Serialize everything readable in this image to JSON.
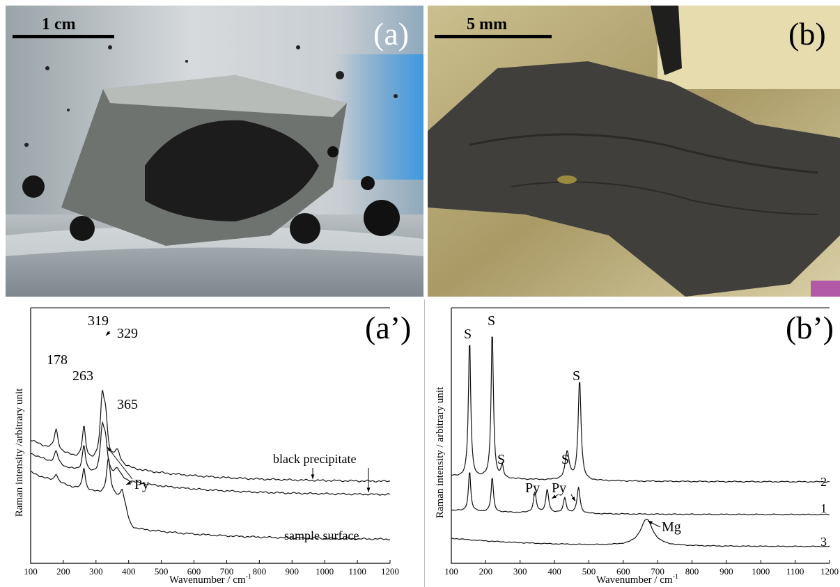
{
  "panels": {
    "a": {
      "letter": "(a)",
      "scale": "1 cm"
    },
    "b": {
      "letter": "(b)",
      "scale": "5 mm"
    }
  },
  "chart_data": [
    {
      "panel": "(a’)",
      "type": "line",
      "ylabel": "Raman intensity /arbitrary unit",
      "xlabel": "Wavenumber / cm",
      "xlabel_sup": "-1",
      "xlim": [
        100,
        1200
      ],
      "xticks": [
        100,
        200,
        300,
        400,
        500,
        600,
        700,
        800,
        900,
        1000,
        1100,
        1200
      ],
      "peak_labels": [
        "319",
        "329",
        "178",
        "263",
        "365",
        "Py"
      ],
      "series": [
        {
          "name": "black precipitate",
          "peaks": [
            178,
            263,
            319,
            329,
            365
          ]
        },
        {
          "name": "black precipitate",
          "peaks": [
            178,
            263,
            319,
            329,
            365
          ]
        },
        {
          "name": "sample surface",
          "peaks": [
            178,
            263,
            338,
            380
          ]
        }
      ]
    },
    {
      "panel": "(b’)",
      "type": "line",
      "ylabel": "Raman intensity / arbitrary unit",
      "xlabel": "Wavenumber / cm",
      "xlabel_sup": "-1",
      "xlim": [
        100,
        1200
      ],
      "xticks": [
        100,
        200,
        300,
        400,
        500,
        600,
        700,
        800,
        900,
        1000,
        1100,
        1200
      ],
      "peak_labels": [
        "S",
        "S",
        "S",
        "S",
        "S",
        "Py",
        "Py",
        "Mg"
      ],
      "series": [
        {
          "name": "2",
          "peaks": [
            153,
            219,
            248,
            437,
            473
          ]
        },
        {
          "name": "1",
          "peaks": [
            153,
            219,
            343,
            379,
            430,
            470
          ]
        },
        {
          "name": "3",
          "peaks": [
            668
          ]
        }
      ]
    }
  ]
}
